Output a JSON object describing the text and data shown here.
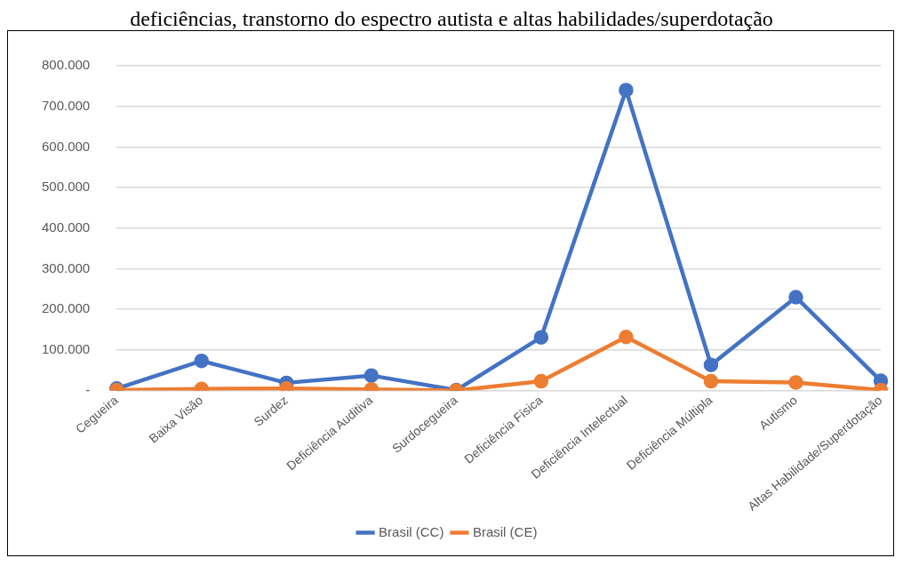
{
  "chart_data": {
    "type": "line",
    "title": "deficiências, transtorno do espectro autista e altas habilidades/superdotação",
    "categories": [
      "Cegueira",
      "Baixa Visão",
      "Surdez",
      "Deficiência Auditiva",
      "Surdocegueira",
      "Deficiência Física",
      "Deficiência Intelectual",
      "Deficiência Múltipla",
      "Autismo",
      "Altas Habilidade/Superdotação"
    ],
    "series": [
      {
        "name": "Brasil (CC)",
        "color": "#4472c4",
        "values": [
          5000,
          73000,
          19000,
          37000,
          1000,
          131000,
          740000,
          63000,
          230000,
          24000
        ]
      },
      {
        "name": "Brasil (CE)",
        "color": "#ed7d31",
        "values": [
          1000,
          4000,
          5000,
          3000,
          0,
          23000,
          132000,
          23000,
          20000,
          1000
        ]
      }
    ],
    "ylim": [
      0,
      800000
    ],
    "yticks": [
      {
        "value": 0,
        "label": "-"
      },
      {
        "value": 100000,
        "label": "100.000"
      },
      {
        "value": 200000,
        "label": "200.000"
      },
      {
        "value": 300000,
        "label": "300.000"
      },
      {
        "value": 400000,
        "label": "400.000"
      },
      {
        "value": 500000,
        "label": "500.000"
      },
      {
        "value": 600000,
        "label": "600.000"
      },
      {
        "value": 700000,
        "label": "700.000"
      },
      {
        "value": 800000,
        "label": "800.000"
      }
    ],
    "grid": "y",
    "legend": "bottom",
    "marker": "circle",
    "line_style": "solid"
  }
}
